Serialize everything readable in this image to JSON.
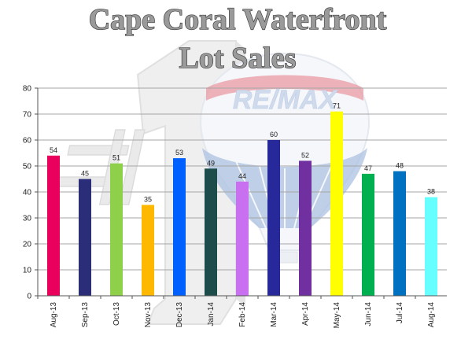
{
  "chart_data": {
    "type": "bar",
    "title_lines": [
      "Cape Coral Waterfront",
      "Lot Sales"
    ],
    "categories": [
      "Aug-13",
      "Sep-13",
      "Oct-13",
      "Nov-13",
      "Dec-13",
      "Jan-14",
      "Feb-14",
      "Mar-14",
      "Apr-14",
      "May-14",
      "Jun-14",
      "Jul-14",
      "Aug-14"
    ],
    "values": [
      54,
      45,
      51,
      35,
      53,
      49,
      44,
      60,
      52,
      71,
      47,
      48,
      38
    ],
    "colors": [
      "#e8005c",
      "#2b2d78",
      "#8ed04a",
      "#ffb800",
      "#0060ff",
      "#1d4d4a",
      "#c870f0",
      "#27289a",
      "#7030a0",
      "#ffff00",
      "#00b050",
      "#0070c0",
      "#66ffff"
    ],
    "ylim": [
      0,
      80
    ],
    "yticks": [
      0,
      10,
      20,
      30,
      40,
      50,
      60,
      70,
      80
    ],
    "grid": true,
    "legend": "none",
    "data_labels": true
  },
  "watermark": {
    "brand_text": "RE/MAX",
    "number_text": "#1"
  }
}
